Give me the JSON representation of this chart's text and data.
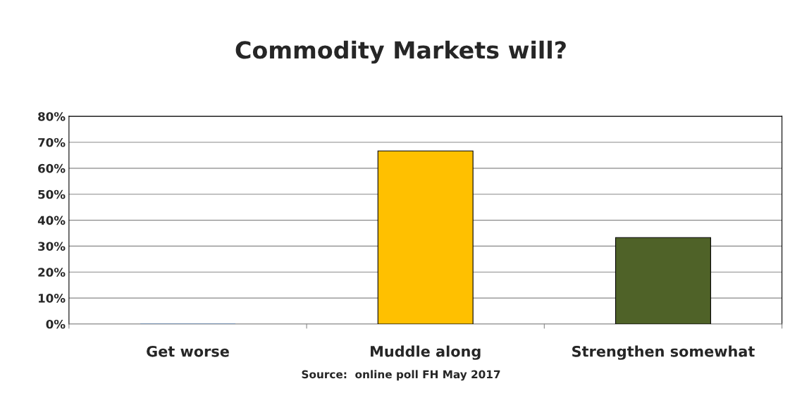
{
  "chart_data": {
    "type": "bar",
    "title": "Commodity Markets will?",
    "categories": [
      "Get worse",
      "Muddle along",
      "Strengthen somewhat"
    ],
    "values": [
      0,
      66.7,
      33.3
    ],
    "colors": [
      "#4f81bd",
      "#ffc000",
      "#4f6228"
    ],
    "ylim": [
      0,
      80
    ],
    "yticks": [
      {
        "value": 0,
        "label": "0%"
      },
      {
        "value": 10,
        "label": "10%"
      },
      {
        "value": 20,
        "label": "20%"
      },
      {
        "value": 30,
        "label": "30%"
      },
      {
        "value": 40,
        "label": "40%"
      },
      {
        "value": 50,
        "label": "50%"
      },
      {
        "value": 60,
        "label": "60%"
      },
      {
        "value": 70,
        "label": "70%"
      },
      {
        "value": 80,
        "label": "80%"
      }
    ],
    "grid": "y",
    "annotations": [
      "Source:  online poll FH May 2017"
    ]
  }
}
